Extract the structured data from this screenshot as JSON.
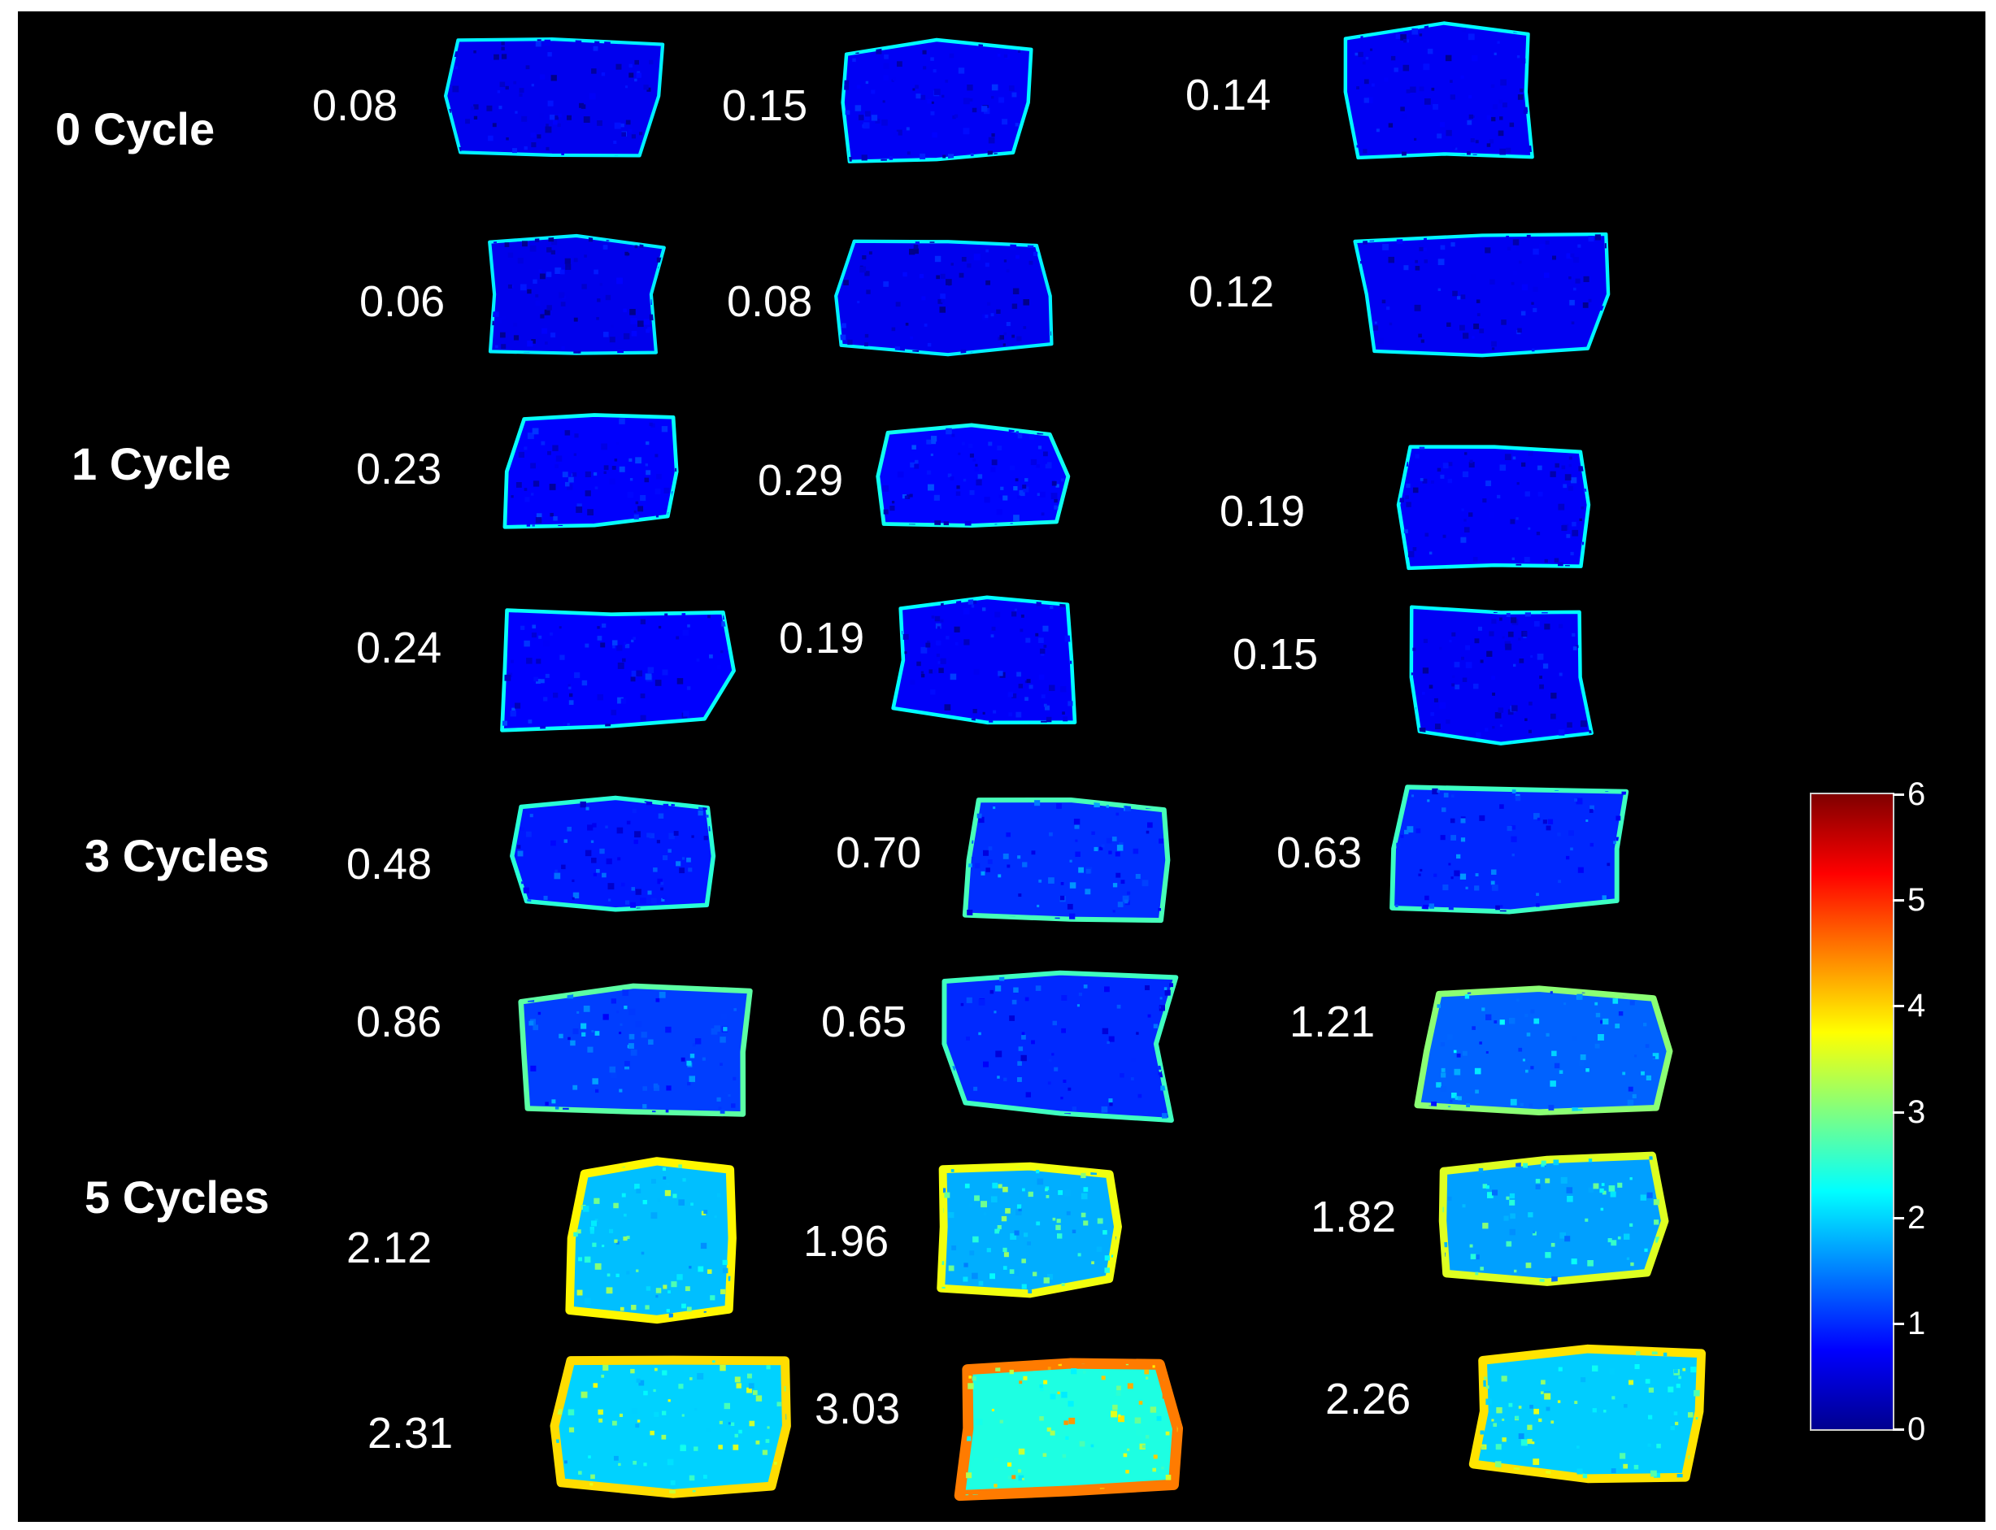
{
  "groups": [
    {
      "label": "0 Cycle",
      "values": [
        "0.08",
        "0.15",
        "0.14",
        "0.06",
        "0.08",
        "0.12"
      ]
    },
    {
      "label": "1 Cycle",
      "values": [
        "0.23",
        "0.29",
        "0.19",
        "0.24",
        "0.19",
        "0.15"
      ]
    },
    {
      "label": "3 Cycles",
      "values": [
        "0.48",
        "0.70",
        "0.63",
        "0.86",
        "0.65",
        "1.21"
      ]
    },
    {
      "label": "5 Cycles",
      "values": [
        "2.12",
        "1.96",
        "1.82",
        "2.31",
        "3.03",
        "2.26"
      ]
    }
  ],
  "colorbar": {
    "ticks": [
      "6",
      "5",
      "4",
      "3",
      "2",
      "1",
      "0"
    ],
    "min": 0,
    "max": 6,
    "colors": [
      "#00008f",
      "#0000ff",
      "#0080ff",
      "#00ffff",
      "#80ff80",
      "#ffff00",
      "#ff8000",
      "#ff0000",
      "#800000"
    ]
  },
  "colors": {
    "background": "#000000",
    "text": "#ffffff"
  }
}
